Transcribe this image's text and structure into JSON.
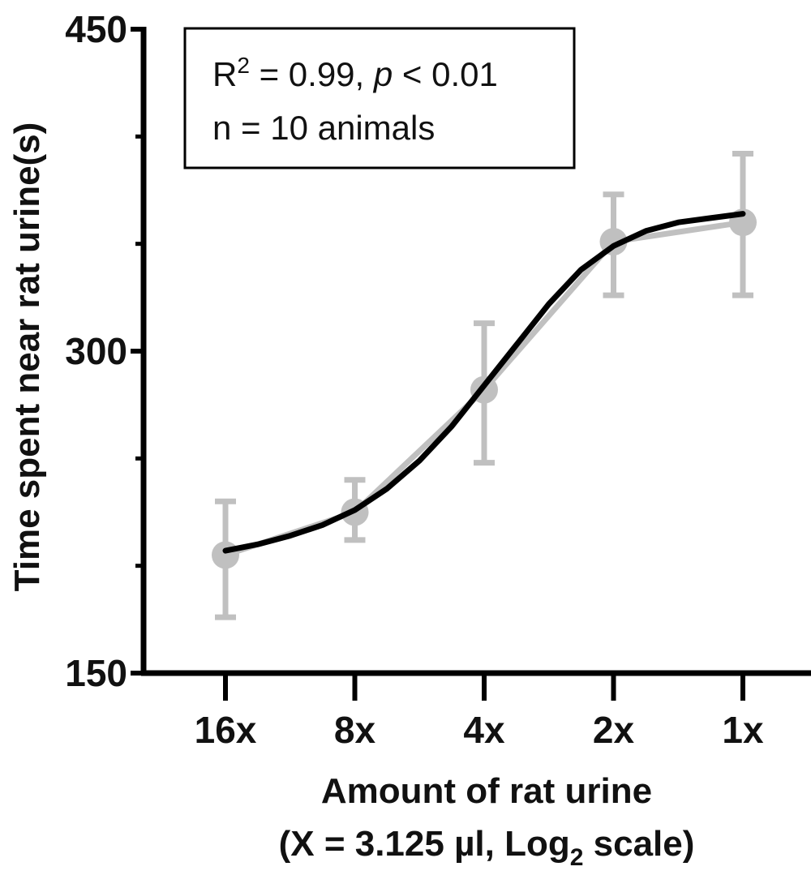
{
  "chart_data": {
    "type": "line",
    "x_categories": [
      "16x",
      "8x",
      "4x",
      "2x",
      "1x"
    ],
    "x_log2": [
      -4,
      -3,
      -2,
      -1,
      0
    ],
    "ylim": [
      150,
      450
    ],
    "y_ticks": [
      "150",
      "300",
      "450"
    ],
    "y_major_ticks": [
      150,
      300,
      450
    ],
    "y_minor_ticks": [
      200,
      250,
      350,
      400
    ],
    "ylabel": "Time spent near rat urine(s)",
    "xlabel_line1": "Amount of rat urine",
    "xlabel_line2_pre": "(X = 3.125 µl, Log",
    "xlabel_line2_sub": "2",
    "xlabel_line2_post": " scale)",
    "series": [
      {
        "kind": "mean_sem",
        "color": "#c0c0c0",
        "values": [
          205,
          225,
          282,
          351,
          360
        ],
        "err_low": [
          176,
          212,
          248,
          326,
          326
        ],
        "err_high": [
          230,
          240,
          313,
          373,
          392
        ]
      },
      {
        "kind": "sigmoid_fit",
        "color": "#000000",
        "fit_points": [
          [
            -4.0,
            207
          ],
          [
            -3.75,
            210
          ],
          [
            -3.5,
            214
          ],
          [
            -3.25,
            219
          ],
          [
            -3.0,
            226
          ],
          [
            -2.75,
            236
          ],
          [
            -2.5,
            249
          ],
          [
            -2.25,
            265
          ],
          [
            -2.0,
            284
          ],
          [
            -1.75,
            303
          ],
          [
            -1.5,
            322
          ],
          [
            -1.25,
            338
          ],
          [
            -1.0,
            349
          ],
          [
            -0.75,
            356
          ],
          [
            -0.5,
            360
          ],
          [
            -0.25,
            362
          ],
          [
            0.0,
            364
          ]
        ]
      }
    ],
    "annotation": {
      "r_label": "R",
      "r_sup": "2",
      "r_rest": " = 0.99, ",
      "p_label": "p",
      "p_rest": " < 0.01",
      "line2": "n = 10 animals"
    }
  }
}
